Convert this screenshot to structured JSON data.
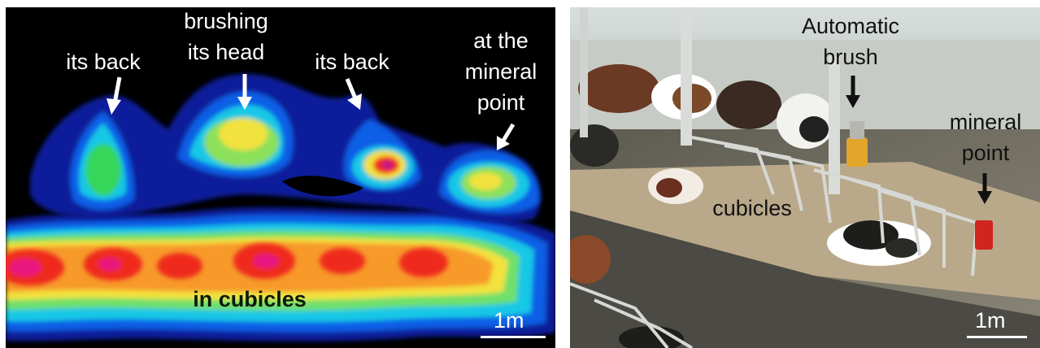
{
  "heatmap": {
    "labels": {
      "back_left": "its back",
      "head": "brushing\nits head",
      "back_right": "its back",
      "mineral": "at the\nmineral\npoint",
      "cubicles": "in cubicles"
    },
    "scale": "1m",
    "colors": {
      "text": "#ffffff",
      "cubicles_text": "#0c1a0c"
    }
  },
  "photo": {
    "labels": {
      "brush": "Automatic\nbrush",
      "mineral": "mineral\npoint",
      "cubicles": "cubicles"
    },
    "scale": "1m",
    "colors": {
      "text": "#111111",
      "brush": "#e3a52a",
      "mineral_point": "#d0241e"
    }
  }
}
